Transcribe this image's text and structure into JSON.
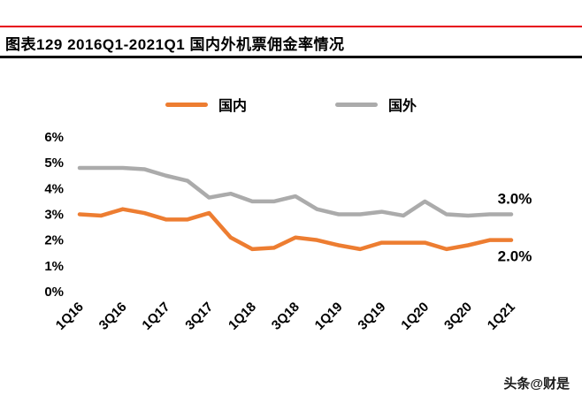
{
  "title": "图表129  2016Q1-2021Q1 国内外机票佣金率情况",
  "accent_colors": {
    "top_line_red": "#e60012",
    "title_underline_black": "#000000"
  },
  "legend": {
    "domestic": "国内",
    "foreign": "国外"
  },
  "watermark": "头条@财是",
  "chart_data": {
    "type": "line",
    "title": "图表129  2016Q1-2021Q1 国内外机票佣金率情况",
    "categories": [
      "1Q16",
      "2Q16",
      "3Q16",
      "4Q16",
      "1Q17",
      "2Q17",
      "3Q17",
      "4Q17",
      "1Q18",
      "2Q18",
      "3Q18",
      "4Q18",
      "1Q19",
      "2Q19",
      "3Q19",
      "4Q19",
      "1Q20",
      "2Q20",
      "3Q20",
      "4Q20",
      "1Q21"
    ],
    "x_tick_labels": [
      "1Q16",
      "3Q16",
      "1Q17",
      "3Q17",
      "1Q18",
      "3Q18",
      "1Q19",
      "3Q19",
      "1Q20",
      "3Q20",
      "1Q21"
    ],
    "series": [
      {
        "name": "国内",
        "color": "#ED7D31",
        "values": [
          3.0,
          2.95,
          3.2,
          3.05,
          2.8,
          2.8,
          3.05,
          2.1,
          1.65,
          1.7,
          2.1,
          2.0,
          1.8,
          1.65,
          1.9,
          1.9,
          1.9,
          1.65,
          1.8,
          2.0,
          2.0
        ],
        "end_label": "2.0%"
      },
      {
        "name": "国外",
        "color": "#ABABAB",
        "values": [
          4.8,
          4.8,
          4.8,
          4.75,
          4.5,
          4.3,
          3.65,
          3.8,
          3.5,
          3.5,
          3.7,
          3.2,
          3.0,
          3.0,
          3.1,
          2.95,
          3.5,
          3.0,
          2.95,
          3.0,
          3.0
        ],
        "end_label": "3.0%"
      }
    ],
    "ylim": [
      0,
      6
    ],
    "ytick_step": 1,
    "ytick_suffix": "%",
    "grid": false,
    "legend_position": "top-center"
  }
}
